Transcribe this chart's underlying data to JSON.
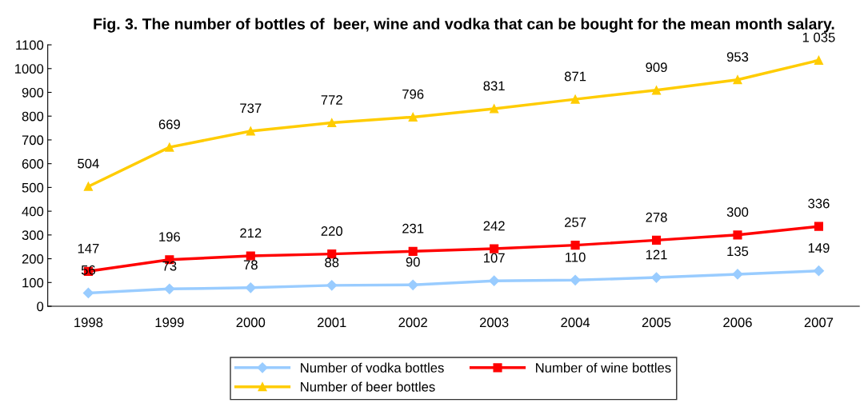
{
  "chart_data": {
    "type": "line",
    "title": "Fig. 3. The number of bottles of  beer, wine and vodka that can be bought for the mean month salary.",
    "categories": [
      "1998",
      "1999",
      "2000",
      "2001",
      "2002",
      "2003",
      "2004",
      "2005",
      "2006",
      "2007"
    ],
    "series": [
      {
        "name": "Number of vodka bottles",
        "color": "#99ccff",
        "marker": "diamond",
        "values": [
          56,
          73,
          78,
          88,
          90,
          107,
          110,
          121,
          135,
          149
        ],
        "value_labels": [
          "56",
          "73",
          "78",
          "88",
          "90",
          "107",
          "110",
          "121",
          "135",
          "149"
        ]
      },
      {
        "name": "Number of wine bottles",
        "color": "#ff0000",
        "marker": "square",
        "values": [
          147,
          196,
          212,
          220,
          231,
          242,
          257,
          278,
          300,
          336
        ],
        "value_labels": [
          "147",
          "196",
          "212",
          "220",
          "231",
          "242",
          "257",
          "278",
          "300",
          "336"
        ]
      },
      {
        "name": "Number of beer bottles",
        "color": "#ffcc00",
        "marker": "triangle",
        "values": [
          504,
          669,
          737,
          772,
          796,
          831,
          871,
          909,
          953,
          1035
        ],
        "value_labels": [
          "504",
          "669",
          "737",
          "772",
          "796",
          "831",
          "871",
          "909",
          "953",
          "1 035"
        ]
      }
    ],
    "ylim": [
      0,
      1100
    ],
    "yticks": [
      0,
      100,
      200,
      300,
      400,
      500,
      600,
      700,
      800,
      900,
      1000,
      1100
    ],
    "grid": false,
    "legend": "bottom",
    "line_style": "solid"
  }
}
